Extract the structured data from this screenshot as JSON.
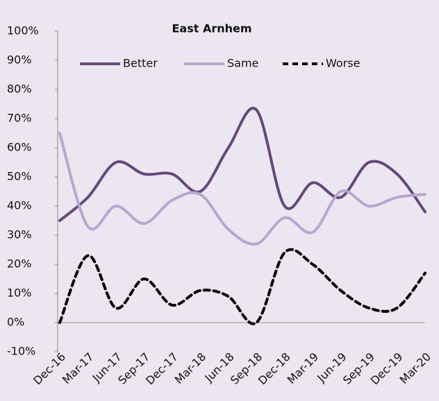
{
  "chart_data": {
    "type": "line",
    "title": "East Arnhem",
    "categories": [
      "Dec-16",
      "Mar-17",
      "Jun-17",
      "Sep-17",
      "Dec-17",
      "Mar-18",
      "Jun-18",
      "Sep-18",
      "Dec-18",
      "Mar-19",
      "Jun-19",
      "Sep-19",
      "Dec-19",
      "Mar-20"
    ],
    "series": [
      {
        "name": "Better",
        "color": "#64497a",
        "values": [
          35,
          43,
          55,
          51,
          51,
          45,
          60,
          73,
          40,
          48,
          43,
          55,
          51,
          38
        ]
      },
      {
        "name": "Same",
        "color": "#b9a6cf",
        "values": [
          65,
          33,
          40,
          34,
          42,
          44,
          32,
          27,
          36,
          31,
          45,
          40,
          43,
          44
        ]
      },
      {
        "name": "Worse",
        "color": "#000000",
        "values": [
          0,
          23,
          5,
          15,
          6,
          11,
          9,
          0,
          24,
          20,
          11,
          5,
          5,
          17
        ]
      }
    ],
    "ylim": [
      -10,
      100
    ],
    "yticks": [
      {
        "value": -10,
        "label": "-10%"
      },
      {
        "value": 0,
        "label": "0%"
      },
      {
        "value": 10,
        "label": "10%"
      },
      {
        "value": 20,
        "label": "20%"
      },
      {
        "value": 30,
        "label": "30%"
      },
      {
        "value": 40,
        "label": "40%"
      },
      {
        "value": 50,
        "label": "50%"
      },
      {
        "value": 60,
        "label": "60%"
      },
      {
        "value": 70,
        "label": "70%"
      },
      {
        "value": 80,
        "label": "80%"
      },
      {
        "value": 90,
        "label": "90%"
      },
      {
        "value": 100,
        "label": "100%"
      }
    ]
  }
}
